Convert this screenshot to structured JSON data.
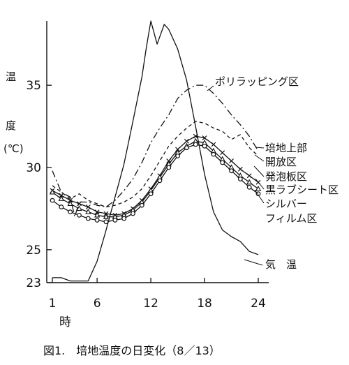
{
  "chart_data": {
    "type": "line",
    "caption": "図1.　培地温度の日変化（8／13）",
    "ylabel": [
      "温",
      "度",
      "(℃)"
    ],
    "xlabel_unit": "時",
    "xlim": [
      1,
      24
    ],
    "ylim": [
      23,
      39.5
    ],
    "xticks": [
      1,
      6,
      12,
      18,
      24
    ],
    "yticks": [
      23,
      25,
      30,
      35
    ],
    "grid": false,
    "legend": "inline labels at right",
    "series": [
      {
        "name": "気温",
        "style": "solid",
        "marker": "none",
        "label_lines": [
          "気　温"
        ],
        "x": [
          1,
          2,
          3,
          4,
          5,
          6,
          7,
          8,
          9,
          10,
          11,
          11.5,
          12,
          12.7,
          13.5,
          14,
          15,
          16,
          17,
          18,
          19,
          20,
          21,
          22,
          23,
          24
        ],
        "y": [
          23.3,
          23.3,
          23.1,
          23.1,
          23.1,
          24.3,
          26.2,
          28.2,
          30.2,
          32.8,
          35.5,
          37.3,
          38.9,
          37.5,
          38.7,
          38.4,
          37.2,
          35.3,
          32.5,
          29.6,
          27.3,
          26.2,
          25.8,
          25.5,
          24.9,
          24.7
        ]
      },
      {
        "name": "ポリラッピング区",
        "style": "dashdot",
        "marker": "none",
        "label_lines": [
          "ポリラッピング区"
        ],
        "x": [
          1,
          2,
          3,
          3.5,
          4,
          5,
          6,
          7,
          8,
          9,
          10,
          11,
          12,
          13,
          14,
          15,
          16,
          17,
          18,
          19,
          20,
          21,
          22,
          23,
          24
        ],
        "y": [
          29.8,
          28.5,
          28.2,
          27.0,
          27.9,
          27.9,
          27.7,
          27.6,
          28.0,
          28.6,
          29.3,
          30.3,
          31.5,
          32.4,
          33.2,
          34.2,
          34.7,
          35.0,
          35.0,
          34.5,
          33.9,
          33.2,
          32.6,
          31.9,
          31.0
        ]
      },
      {
        "name": "培地上部開放区",
        "style": "dashed",
        "marker": "none",
        "label_lines": [
          "培地上部",
          "開放区"
        ],
        "x": [
          1,
          2,
          3,
          4,
          5,
          6,
          7,
          8,
          9,
          10,
          11,
          12,
          13,
          14,
          15,
          16,
          17,
          18,
          19,
          20,
          21,
          22,
          23,
          24
        ],
        "y": [
          28.9,
          28.5,
          28.1,
          28.4,
          28.0,
          27.8,
          27.6,
          27.7,
          27.9,
          28.2,
          28.7,
          29.5,
          30.4,
          31.3,
          31.9,
          32.4,
          32.8,
          32.7,
          32.4,
          32.2,
          31.7,
          32.0,
          31.2,
          30.7
        ]
      },
      {
        "name": "発泡板区",
        "style": "solid",
        "marker": "x",
        "label_lines": [
          "発泡板区"
        ],
        "x": [
          1,
          2,
          3,
          4,
          5,
          6,
          7,
          8,
          9,
          10,
          11,
          12,
          13,
          14,
          15,
          16,
          17,
          18,
          19,
          20,
          21,
          22,
          23,
          24
        ],
        "y": [
          28.6,
          28.3,
          28.0,
          27.8,
          27.6,
          27.3,
          27.2,
          27.1,
          27.2,
          27.5,
          28.0,
          28.7,
          29.5,
          30.4,
          31.1,
          31.6,
          31.9,
          31.8,
          31.4,
          30.9,
          30.4,
          29.9,
          29.5,
          29.1
        ]
      },
      {
        "name": "黒ラブシート区",
        "style": "solid",
        "marker": "triangle",
        "label_lines": [
          "黒ラブシート区"
        ],
        "x": [
          1,
          2,
          3,
          4,
          5,
          6,
          7,
          8,
          9,
          10,
          11,
          12,
          13,
          14,
          15,
          16,
          17,
          18,
          19,
          20,
          21,
          22,
          23,
          24
        ],
        "y": [
          28.5,
          28.1,
          27.8,
          27.5,
          27.3,
          27.1,
          27.0,
          27.0,
          27.1,
          27.4,
          27.9,
          28.6,
          29.4,
          30.2,
          30.9,
          31.3,
          31.6,
          31.5,
          31.0,
          30.5,
          30.0,
          29.5,
          29.1,
          28.7
        ]
      },
      {
        "name": "シルバーフィルム区",
        "style": "solid",
        "marker": "circle",
        "label_lines": [
          "シルバー",
          "フィルム区"
        ],
        "x": [
          1,
          2,
          3,
          4,
          5,
          6,
          7,
          8,
          9,
          10,
          11,
          12,
          13,
          14,
          15,
          16,
          17,
          18,
          19,
          20,
          21,
          22,
          23,
          24
        ],
        "y": [
          28.0,
          27.6,
          27.3,
          27.1,
          26.9,
          26.8,
          26.7,
          26.8,
          26.9,
          27.2,
          27.7,
          28.4,
          29.2,
          30.0,
          30.7,
          31.2,
          31.4,
          31.3,
          30.8,
          30.3,
          29.8,
          29.3,
          28.8,
          28.4
        ]
      }
    ]
  }
}
